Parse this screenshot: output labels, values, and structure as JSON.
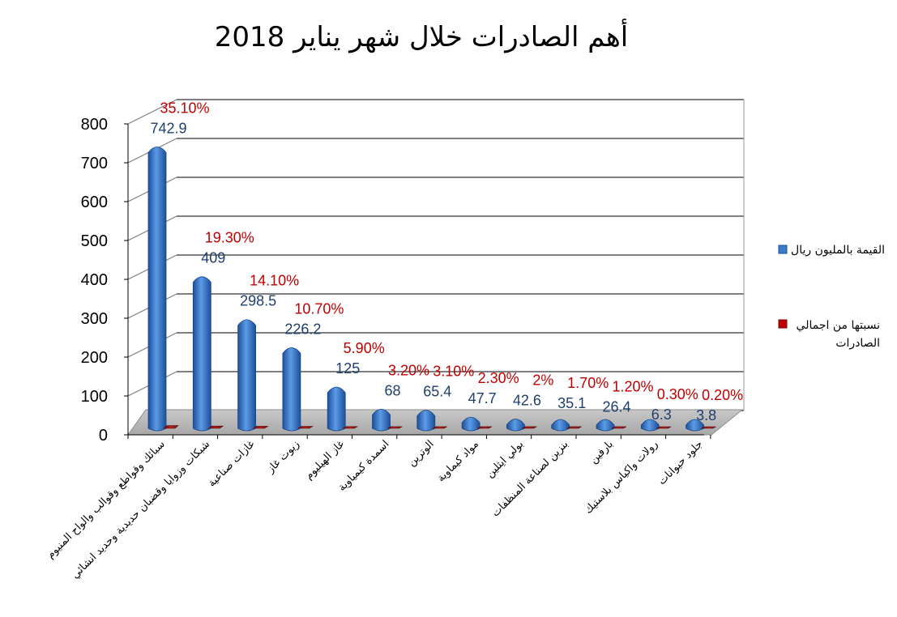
{
  "chart_data": {
    "type": "bar",
    "title": "أهم الصادرات خلال شهر يناير 2018",
    "categories": [
      "سبائك وقواطع وقوالب والواح المنيوم",
      "شبكات وزوايا وقضبان حديدية وحديد انشائي",
      "غازات صناعية",
      "زيوت غاز",
      "غاز الهيليوم",
      "اسمدة كيمياوية",
      "الوترين",
      "مواد كيماوية",
      "بولي ايثلين",
      "بنزين لصناعة المنظفات",
      "بارفين",
      "رولات واكياس بلاستيك",
      "جلود حيوانات"
    ],
    "series": [
      {
        "name": "القيمة بالمليون ريال",
        "values": [
          742.9,
          409,
          298.5,
          226.2,
          125,
          68,
          65.4,
          47.7,
          42.6,
          35.1,
          26.4,
          6.3,
          3.8
        ],
        "labels": [
          "742.9",
          "409",
          "298.5",
          "226.2",
          "125",
          "68",
          "65.4",
          "47.7",
          "42.6",
          "35.1",
          "26.4",
          "6.3",
          "3.8"
        ],
        "color": "#3d7ac9"
      },
      {
        "name": "نسبتها من اجمالي الصادرات",
        "values": [
          35.1,
          19.3,
          14.1,
          10.7,
          5.9,
          3.2,
          3.1,
          2.3,
          2,
          1.7,
          1.2,
          0.3,
          0.2
        ],
        "labels": [
          "35.10%",
          "19.30%",
          "14.10%",
          "10.70%",
          "5.90%",
          "3.20%",
          "3.10%",
          "2.30%",
          "2%",
          "1.70%",
          "1.20%",
          "0.30%",
          "0.20%"
        ],
        "color": "#c00000"
      }
    ],
    "yticks": [
      0,
      100,
      200,
      300,
      400,
      500,
      600,
      700,
      800
    ],
    "ylim": [
      0,
      800
    ],
    "legend_position": "right",
    "grid": true
  }
}
